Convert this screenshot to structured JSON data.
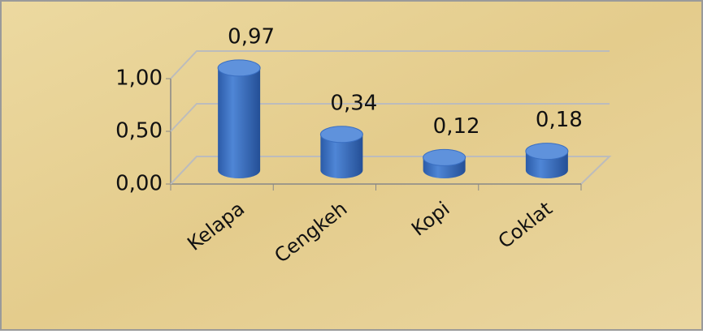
{
  "chart_data": {
    "type": "bar",
    "categories": [
      "Kelapa",
      "Cengkeh",
      "Kopi",
      "Coklat"
    ],
    "values": [
      0.97,
      0.34,
      0.12,
      0.18
    ],
    "value_labels": [
      "0,97",
      "0,34",
      "0,12",
      "0,18"
    ],
    "color": "#3a6fc2",
    "ylim": [
      0,
      1
    ],
    "yticks": [
      {
        "value": 0,
        "label": "0,00"
      },
      {
        "value": 0.5,
        "label": "0,50"
      },
      {
        "value": 1,
        "label": "1,00"
      }
    ],
    "grid": true
  }
}
